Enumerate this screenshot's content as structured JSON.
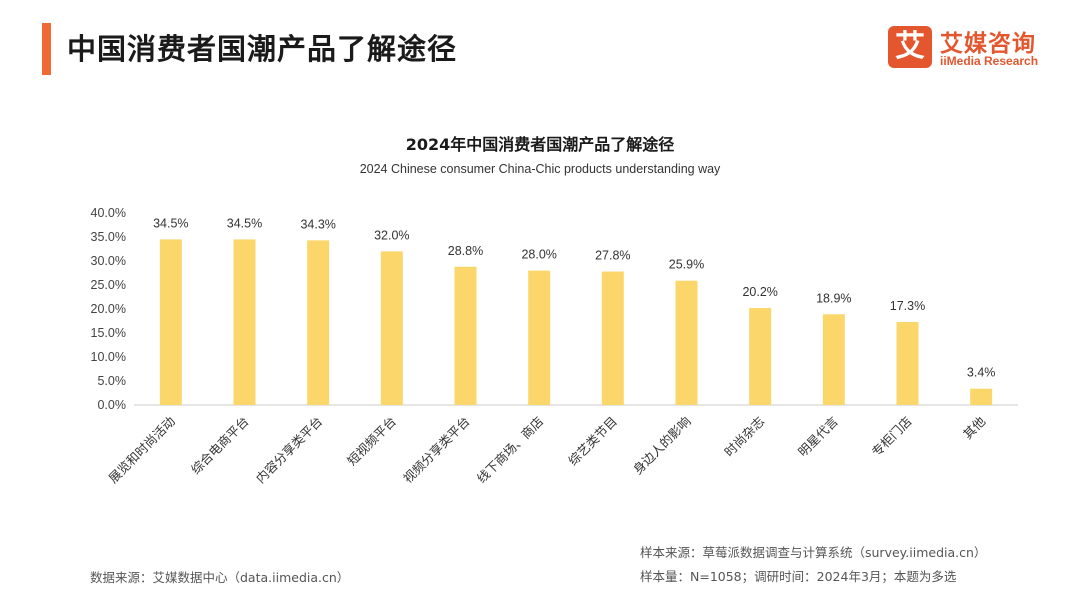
{
  "header": {
    "title": "中国消费者国潮产品了解途径",
    "logo_mark": "艾",
    "logo_cn": "艾媒咨询",
    "logo_en": "iiMedia Research"
  },
  "colors": {
    "accent": "#ef6b35",
    "bar": "#fbd76b",
    "logo": "#e4572e"
  },
  "chart_data": {
    "type": "bar",
    "title": "2024年中国消费者国潮产品了解途径",
    "subtitle": "2024 Chinese consumer China-Chic products understanding way",
    "categories": [
      "展览和时尚活动",
      "综合电商平台",
      "内容分享类平台",
      "短视频平台",
      "视频分享类平台",
      "线下商场、商店",
      "综艺类节目",
      "身边人的影响",
      "时尚杂志",
      "明星代言",
      "专柜门店",
      "其他"
    ],
    "values": [
      34.5,
      34.5,
      34.3,
      32.0,
      28.8,
      28.0,
      27.8,
      25.9,
      20.2,
      18.9,
      17.3,
      3.4
    ],
    "data_labels": [
      "34.5%",
      "34.5%",
      "34.3%",
      "32.0%",
      "28.8%",
      "28.0%",
      "27.8%",
      "25.9%",
      "20.2%",
      "18.9%",
      "17.3%",
      "3.4%"
    ],
    "y_ticks": [
      "0.0%",
      "5.0%",
      "10.0%",
      "15.0%",
      "20.0%",
      "25.0%",
      "30.0%",
      "35.0%",
      "40.0%"
    ],
    "ylim": [
      0,
      40
    ],
    "grid": false,
    "legend": "none"
  },
  "footer": {
    "data_source": "数据来源：艾媒数据中心（data.iimedia.cn）",
    "sample_source": "样本来源：草莓派数据调查与计算系统（survey.iimedia.cn）",
    "sample_info": "样本量：N=1058；调研时间：2024年3月；本题为多选"
  }
}
